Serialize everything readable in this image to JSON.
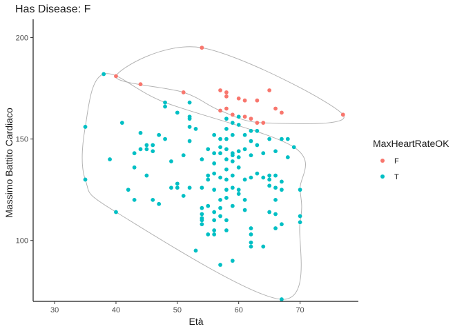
{
  "chart_data": {
    "type": "scatter",
    "title": "Has Disease: F",
    "xlabel": "Età",
    "ylabel": "Massimo Battito Cardiaco",
    "xlim": [
      26.5,
      79.5
    ],
    "ylim": [
      70,
      209
    ],
    "x_ticks": [
      30,
      40,
      50,
      60,
      70
    ],
    "y_ticks": [
      100,
      150,
      200
    ],
    "grid": false,
    "legend": {
      "title": "MaxHeartRateOK",
      "placement": "right",
      "entries": [
        {
          "label": "F",
          "color": "#F8766D"
        },
        {
          "label": "T",
          "color": "#00BFC4"
        }
      ]
    },
    "series": [
      {
        "name": "F",
        "color": "#F8766D",
        "points": [
          [
            40,
            181
          ],
          [
            44,
            177
          ],
          [
            51,
            173
          ],
          [
            54,
            195
          ],
          [
            57,
            174
          ],
          [
            58,
            173
          ],
          [
            58,
            171
          ],
          [
            58,
            165
          ],
          [
            57,
            164
          ],
          [
            59,
            162
          ],
          [
            60,
            170
          ],
          [
            61,
            169
          ],
          [
            61,
            161
          ],
          [
            62,
            160
          ],
          [
            63,
            169
          ],
          [
            63,
            158
          ],
          [
            64,
            158
          ],
          [
            65,
            174
          ],
          [
            66,
            165
          ],
          [
            67,
            163
          ],
          [
            77,
            162
          ]
        ]
      },
      {
        "name": "T",
        "color": "#00BFC4",
        "points": [
          [
            35,
            156
          ],
          [
            35,
            130
          ],
          [
            38,
            182
          ],
          [
            39,
            140
          ],
          [
            40,
            114
          ],
          [
            41,
            158
          ],
          [
            42,
            125
          ],
          [
            43,
            143
          ],
          [
            43,
            136
          ],
          [
            43,
            120
          ],
          [
            44,
            153
          ],
          [
            44,
            145
          ],
          [
            45,
            147
          ],
          [
            45,
            145
          ],
          [
            45,
            132
          ],
          [
            46,
            147
          ],
          [
            46,
            144
          ],
          [
            46,
            120
          ],
          [
            47,
            152
          ],
          [
            47,
            118
          ],
          [
            48,
            168
          ],
          [
            48,
            166
          ],
          [
            48,
            150
          ],
          [
            49,
            139
          ],
          [
            49,
            126
          ],
          [
            50,
            163
          ],
          [
            50,
            128
          ],
          [
            50,
            126
          ],
          [
            51,
            142
          ],
          [
            51,
            122
          ],
          [
            52,
            168
          ],
          [
            52,
            161
          ],
          [
            52,
            160
          ],
          [
            52,
            156
          ],
          [
            52,
            149
          ],
          [
            52,
            126
          ],
          [
            53,
            155
          ],
          [
            53,
            95
          ],
          [
            54,
            140
          ],
          [
            54,
            126
          ],
          [
            54,
            116
          ],
          [
            54,
            113
          ],
          [
            54,
            111
          ],
          [
            54,
            110
          ],
          [
            54,
            108
          ],
          [
            55,
            145
          ],
          [
            55,
            132
          ],
          [
            55,
            130
          ],
          [
            55,
            117
          ],
          [
            55,
            103
          ],
          [
            56,
            152
          ],
          [
            56,
            143
          ],
          [
            56,
            138
          ],
          [
            56,
            133
          ],
          [
            56,
            125
          ],
          [
            56,
            114
          ],
          [
            56,
            110
          ],
          [
            56,
            105
          ],
          [
            56,
            103
          ],
          [
            57,
            150
          ],
          [
            57,
            146
          ],
          [
            57,
            143
          ],
          [
            57,
            131
          ],
          [
            57,
            120
          ],
          [
            57,
            116
          ],
          [
            57,
            112
          ],
          [
            57,
            88
          ],
          [
            58,
            160
          ],
          [
            58,
            155
          ],
          [
            58,
            150
          ],
          [
            58,
            145
          ],
          [
            58,
            140
          ],
          [
            58,
            135
          ],
          [
            58,
            130
          ],
          [
            58,
            125
          ],
          [
            58,
            121
          ],
          [
            58,
            110
          ],
          [
            58,
            105
          ],
          [
            59,
            158
          ],
          [
            59,
            152
          ],
          [
            59,
            143
          ],
          [
            59,
            142
          ],
          [
            59,
            139
          ],
          [
            59,
            132
          ],
          [
            59,
            126
          ],
          [
            59,
            117
          ],
          [
            59,
            90
          ],
          [
            60,
            161
          ],
          [
            60,
            157
          ],
          [
            60,
            144
          ],
          [
            60,
            141
          ],
          [
            60,
            136
          ],
          [
            60,
            125
          ],
          [
            60,
            123
          ],
          [
            61,
            152
          ],
          [
            61,
            145
          ],
          [
            61,
            130
          ],
          [
            61,
            120
          ],
          [
            61,
            115
          ],
          [
            62,
            154
          ],
          [
            62,
            149
          ],
          [
            62,
            142
          ],
          [
            62,
            131
          ],
          [
            62,
            106
          ],
          [
            62,
            103
          ],
          [
            62,
            99
          ],
          [
            62,
            97
          ],
          [
            63,
            154
          ],
          [
            63,
            147
          ],
          [
            63,
            133
          ],
          [
            64,
            143
          ],
          [
            64,
            131
          ],
          [
            64,
            97
          ],
          [
            65,
            150
          ],
          [
            65,
            132
          ],
          [
            65,
            130
          ],
          [
            65,
            127
          ],
          [
            65,
            114
          ],
          [
            66,
            144
          ],
          [
            66,
            132
          ],
          [
            66,
            126
          ],
          [
            66,
            120
          ],
          [
            66,
            113
          ],
          [
            66,
            106
          ],
          [
            67,
            150
          ],
          [
            67,
            129
          ],
          [
            67,
            125
          ],
          [
            67,
            108
          ],
          [
            68,
            150
          ],
          [
            68,
            141
          ],
          [
            69,
            146
          ],
          [
            70,
            125
          ],
          [
            70,
            112
          ],
          [
            70,
            109
          ],
          [
            67,
            71
          ]
        ]
      }
    ],
    "hulls": [
      {
        "name": "F",
        "color": "#b3b3b3",
        "points": [
          [
            40,
            181
          ],
          [
            54,
            195
          ],
          [
            77,
            162
          ],
          [
            64,
            158
          ],
          [
            57,
            164
          ],
          [
            51,
            173
          ]
        ]
      },
      {
        "name": "T",
        "color": "#b3b3b3",
        "points": [
          [
            38,
            182
          ],
          [
            48,
            168
          ],
          [
            69,
            146
          ],
          [
            70,
            125
          ],
          [
            70,
            109
          ],
          [
            67,
            71
          ],
          [
            40,
            114
          ],
          [
            35,
            130
          ],
          [
            35,
            156
          ]
        ]
      }
    ]
  }
}
